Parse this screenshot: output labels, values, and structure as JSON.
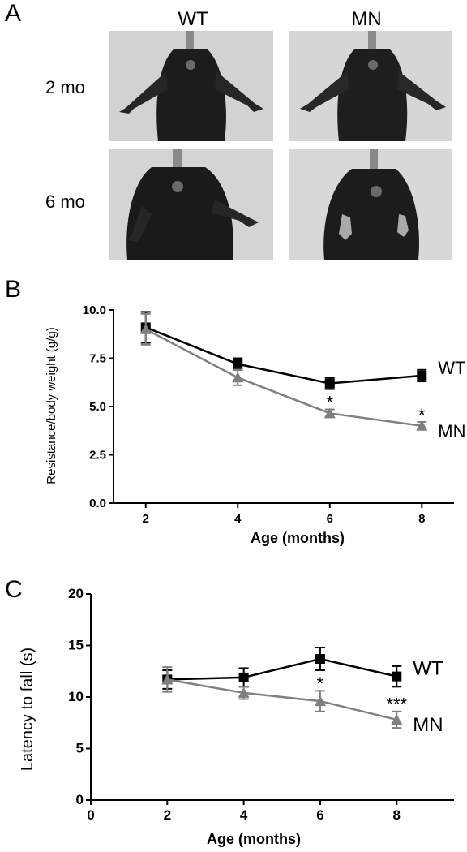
{
  "panel_a": {
    "letter": "A",
    "columns": [
      "WT",
      "MN"
    ],
    "rows": [
      "2 mo",
      "6 mo"
    ]
  },
  "panel_b": {
    "letter": "B"
  },
  "panel_c": {
    "letter": "C"
  },
  "chart_data": [
    {
      "type": "line",
      "panel": "B",
      "title": "",
      "xlabel": "Age (months)",
      "ylabel": "Resistance/body weight (g/g)",
      "x": [
        2,
        4,
        6,
        8
      ],
      "xticks": [
        "2",
        "4",
        "6",
        "8"
      ],
      "yticks": [
        "0.0",
        "2.5",
        "5.0",
        "7.5",
        "10.0"
      ],
      "xlim": [
        1.3,
        8.7
      ],
      "ylim": [
        0,
        10
      ],
      "grid": false,
      "series": [
        {
          "name": "WT",
          "color": "#000000",
          "marker": "square",
          "values": [
            9.1,
            7.2,
            6.2,
            6.6
          ],
          "errors": [
            0.8,
            0.3,
            0.3,
            0.3
          ]
        },
        {
          "name": "MN",
          "color": "#808080",
          "marker": "triangle",
          "values": [
            9.0,
            6.5,
            4.65,
            4.0
          ],
          "errors": [
            0.8,
            0.4,
            0.2,
            0.2
          ]
        }
      ],
      "annotations": [
        {
          "x": 6,
          "y": 4.9,
          "text": "*"
        },
        {
          "x": 8,
          "y": 4.25,
          "text": "*"
        }
      ]
    },
    {
      "type": "line",
      "panel": "C",
      "title": "",
      "xlabel": "Age (months)",
      "ylabel": "Latency to fall (s)",
      "x": [
        2,
        4,
        6,
        8
      ],
      "xticks": [
        "0",
        "2",
        "4",
        "6",
        "8"
      ],
      "yticks": [
        "0",
        "5",
        "10",
        "15",
        "20"
      ],
      "xlim": [
        0,
        9.5
      ],
      "ylim": [
        0,
        20
      ],
      "grid": false,
      "series": [
        {
          "name": "WT",
          "color": "#000000",
          "marker": "square",
          "values": [
            11.7,
            11.9,
            13.7,
            12.0
          ],
          "errors": [
            0.9,
            0.9,
            1.1,
            1.0
          ]
        },
        {
          "name": "MN",
          "color": "#808080",
          "marker": "triangle",
          "values": [
            11.7,
            10.4,
            9.6,
            7.8
          ],
          "errors": [
            1.2,
            0.6,
            1.0,
            0.8
          ]
        }
      ],
      "annotations": [
        {
          "x": 6,
          "y": 10.7,
          "text": "*"
        },
        {
          "x": 8,
          "y": 8.7,
          "text": "***"
        }
      ]
    }
  ]
}
